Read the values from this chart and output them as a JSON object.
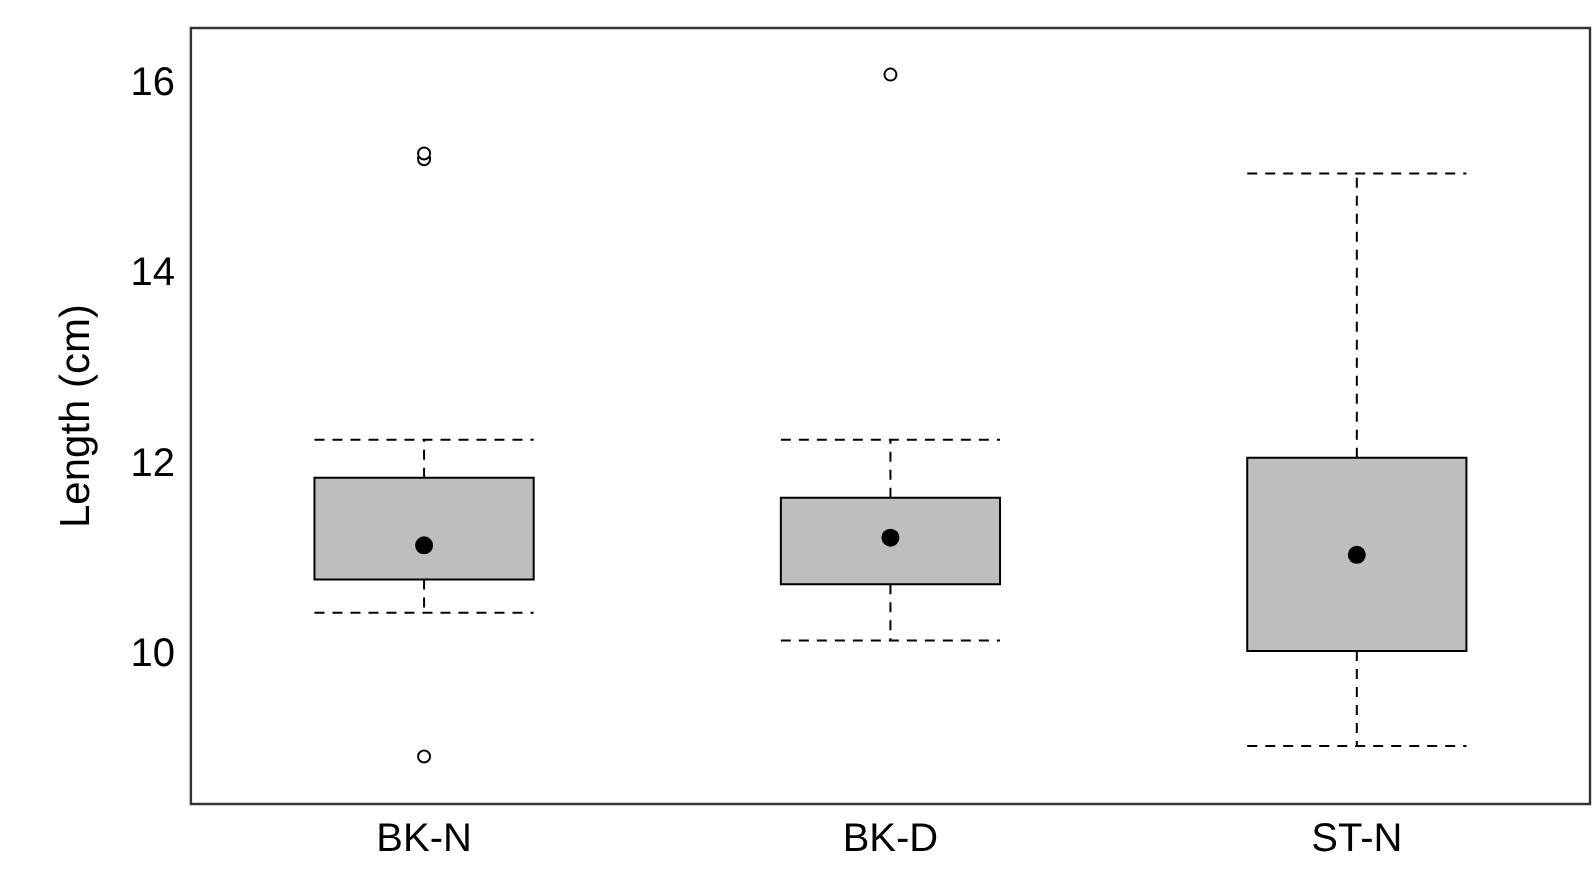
{
  "chart_data": {
    "type": "box",
    "ylabel": "Length (cm)",
    "categories": [
      "BK-N",
      "BK-D",
      "ST-N"
    ],
    "color": "#bebebe",
    "boxes": [
      {
        "low": 10.44,
        "q1": 10.79,
        "median": 11.15,
        "q3": 11.86,
        "high": 12.26,
        "outliers": [
          15.21,
          15.27,
          8.93
        ]
      },
      {
        "low": 10.15,
        "q1": 10.74,
        "median": 11.23,
        "q3": 11.65,
        "high": 12.26,
        "outliers": [
          16.1
        ]
      },
      {
        "low": 9.04,
        "q1": 10.04,
        "median": 11.05,
        "q3": 12.07,
        "high": 15.06
      }
    ],
    "ylim": [
      8.43,
      16.59
    ],
    "yticks": [
      10,
      12,
      14,
      16
    ],
    "grid": false,
    "legend": false
  }
}
